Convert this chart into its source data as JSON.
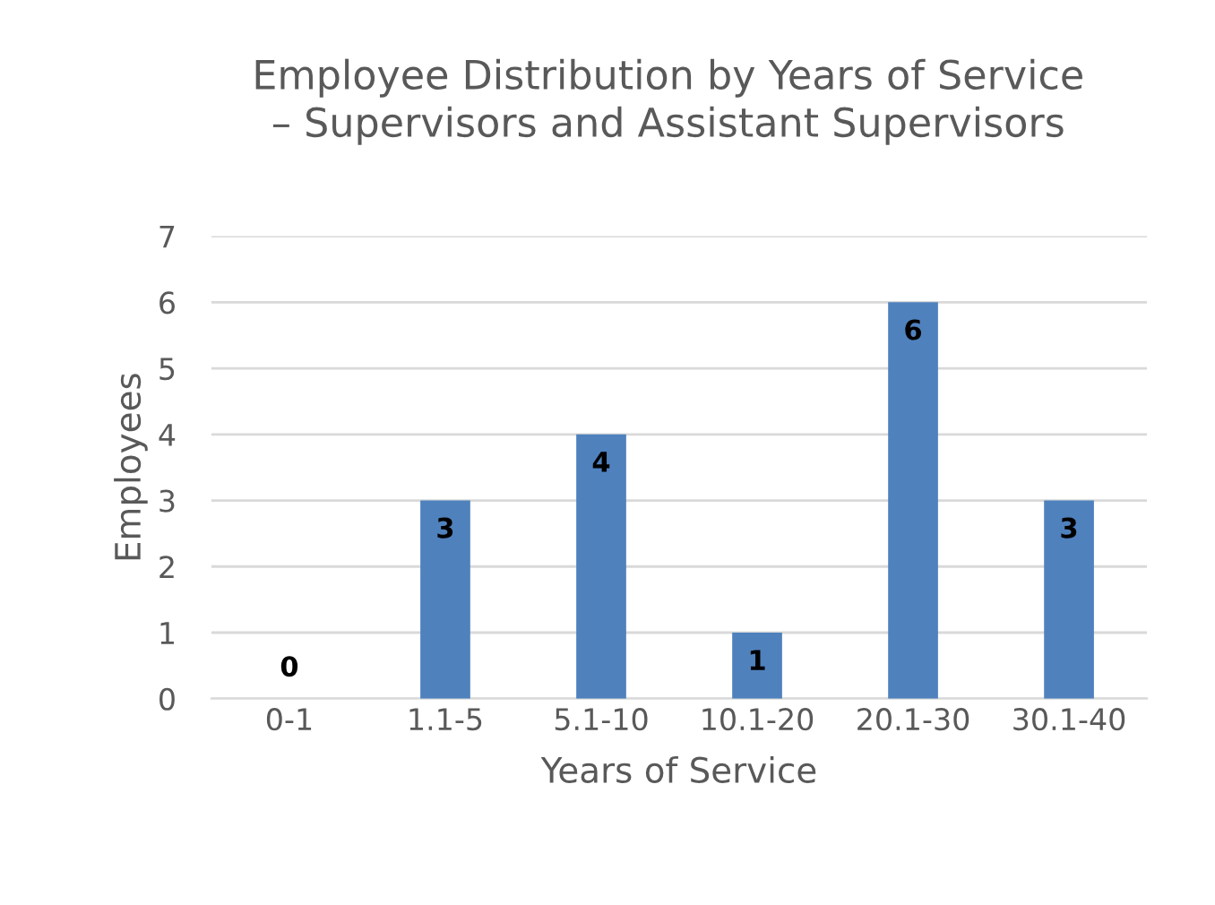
{
  "chart_data": {
    "type": "bar",
    "title": "Employee Distribution by Years of Service\n– Supervisors and Assistant Supervisors",
    "xlabel": "Years of Service",
    "ylabel": "Employees",
    "categories": [
      "0-1",
      "1.1-5",
      "5.1-10",
      "10.1-20",
      "20.1-30",
      "30.1-40"
    ],
    "values": [
      0,
      3,
      4,
      1,
      6,
      3
    ],
    "color": "#4f81bd",
    "ylim": [
      0,
      7
    ],
    "yticks": [
      0,
      1,
      2,
      3,
      4,
      5,
      6,
      7
    ],
    "grid": "y",
    "data_labels": true,
    "legend": false
  }
}
